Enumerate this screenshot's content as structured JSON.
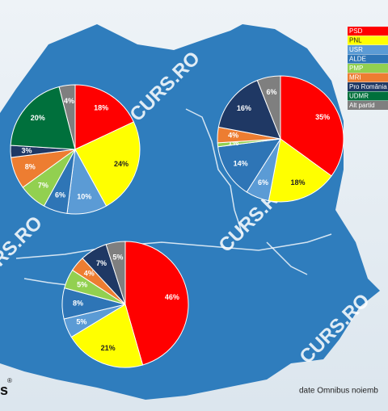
{
  "chart_data": {
    "type": "pie",
    "categories": [
      "PSD",
      "PNL",
      "USR",
      "ALDE",
      "PMP",
      "MRI",
      "Pro România",
      "UDMR",
      "Alt partid"
    ],
    "colors": [
      "#ff0000",
      "#ffff00",
      "#5b9bd5",
      "#2e75b6",
      "#92d050",
      "#ed7d31",
      "#1f3864",
      "#00703c",
      "#7f7f7f"
    ],
    "series": [
      {
        "values": [
          18,
          24,
          10,
          6,
          7,
          8,
          3,
          20,
          4
        ],
        "value_labels": [
          "18%",
          "24%",
          "10%",
          "6%",
          "7%",
          "8%",
          "3%",
          "20%",
          "4%"
        ]
      },
      {
        "values": [
          35,
          18,
          6,
          14,
          1,
          4,
          16,
          null,
          6
        ],
        "value_labels": [
          "35%",
          "18%",
          "6%",
          "14%",
          "1%",
          "4%",
          "16%",
          null,
          "6%"
        ]
      },
      {
        "values": [
          46,
          21,
          5,
          8,
          5,
          4,
          7,
          null,
          5
        ],
        "value_labels": [
          "46%",
          "21%",
          "5%",
          "8%",
          "5%",
          "4%",
          "7%",
          null,
          "5%"
        ]
      }
    ]
  },
  "watermark": "CURS.RO",
  "source": "date Omnibus noiemb",
  "logo": "s",
  "logo_mark": "®"
}
